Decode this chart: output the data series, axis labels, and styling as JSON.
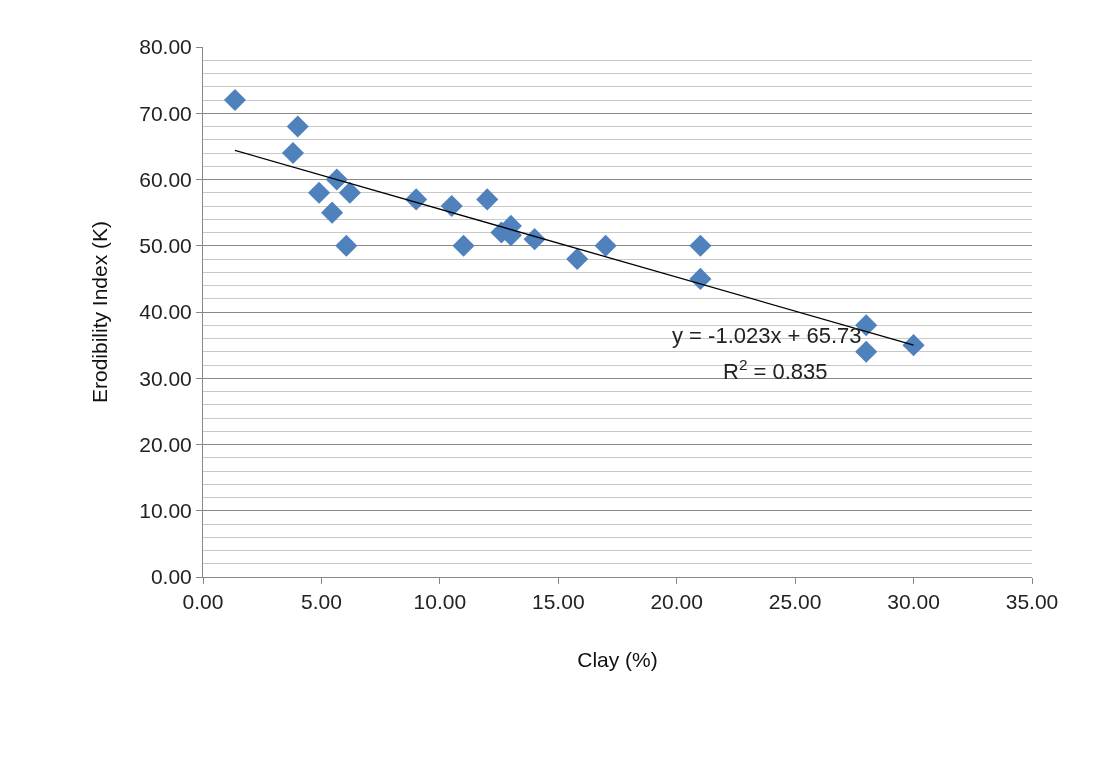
{
  "chart_data": {
    "type": "scatter",
    "xlabel": "Clay (%)",
    "ylabel": "Erodibility Index (K)",
    "xlim": [
      0,
      35
    ],
    "xticks": [
      {
        "value": 0,
        "label": "0.00"
      },
      {
        "value": 5,
        "label": "5.00"
      },
      {
        "value": 10,
        "label": "10.00"
      },
      {
        "value": 15,
        "label": "15.00"
      },
      {
        "value": 20,
        "label": "20.00"
      },
      {
        "value": 25,
        "label": "25.00"
      },
      {
        "value": 30,
        "label": "30.00"
      },
      {
        "value": 35,
        "label": "35.00"
      }
    ],
    "ylim": [
      0,
      80
    ],
    "yticks": [
      {
        "value": 0,
        "label": "0.00"
      },
      {
        "value": 10,
        "label": "10.00"
      },
      {
        "value": 20,
        "label": "20.00"
      },
      {
        "value": 30,
        "label": "30.00"
      },
      {
        "value": 40,
        "label": "40.00"
      },
      {
        "value": 50,
        "label": "50.00"
      },
      {
        "value": 60,
        "label": "60.00"
      },
      {
        "value": 70,
        "label": "70.00"
      },
      {
        "value": 80,
        "label": "80.00"
      }
    ],
    "grid": "y",
    "series": [
      {
        "marker": "diamond",
        "color": "#4f81bd",
        "x": [
          1.35,
          4.0,
          3.8,
          5.65,
          6.2,
          4.9,
          5.45,
          6.05,
          9.0,
          10.5,
          11.0,
          12.0,
          12.6,
          13.0,
          13.0,
          14.0,
          15.8,
          17.0,
          21.0,
          21.0,
          28.0,
          28.0,
          30.0
        ],
        "values": [
          72,
          68,
          64,
          60,
          58,
          58,
          55,
          50,
          57,
          56,
          50,
          57,
          52,
          53,
          51.6,
          51,
          48,
          50,
          50,
          45,
          38,
          34,
          35
        ]
      },
      {
        "type": "line",
        "color": "#000000",
        "x": [
          1.35,
          30.0
        ],
        "values": [
          64.4,
          35.0
        ]
      }
    ],
    "annotations": [
      "y = -1.023x + 65.73",
      "R$^{2}$ = 0.835"
    ]
  }
}
